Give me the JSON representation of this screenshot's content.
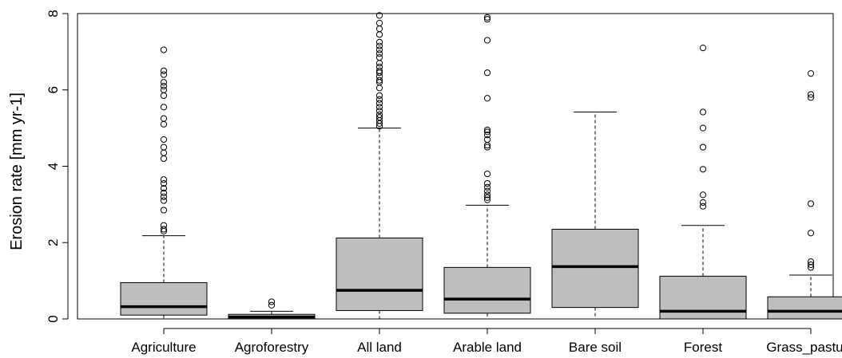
{
  "chart_data": {
    "type": "boxplot",
    "title": "",
    "xlabel": "",
    "ylabel": "Erosion rate [mm yr-1]",
    "ylim": [
      0,
      8
    ],
    "yticks": [
      0,
      2,
      4,
      6,
      8
    ],
    "grid": false,
    "colors": {
      "box_fill": "#bebebe",
      "stroke": "#000000"
    },
    "categories": [
      "Agriculture",
      "Agroforestry",
      "All land",
      "Arable land",
      "Bare soil",
      "Forest",
      "Grass_pasture"
    ],
    "boxes": [
      {
        "label": "Agriculture",
        "min": 0.0,
        "q1": 0.1,
        "median": 0.32,
        "q3": 0.95,
        "max": 2.18,
        "outliers": [
          2.3,
          2.35,
          2.45,
          2.85,
          3.1,
          3.2,
          3.3,
          3.42,
          3.55,
          3.65,
          4.2,
          4.35,
          4.5,
          4.7,
          5.1,
          5.25,
          5.55,
          5.85,
          6.0,
          6.1,
          6.2,
          6.4,
          6.5,
          7.05
        ]
      },
      {
        "label": "Agroforestry",
        "min": 0.0,
        "q1": 0.0,
        "median": 0.05,
        "q3": 0.12,
        "max": 0.2,
        "outliers": [
          0.36,
          0.45
        ]
      },
      {
        "label": "All land",
        "min": 0.0,
        "q1": 0.22,
        "median": 0.75,
        "q3": 2.12,
        "max": 5.0,
        "outliers": [
          5.05,
          5.12,
          5.2,
          5.28,
          5.35,
          5.45,
          5.55,
          5.65,
          5.75,
          5.85,
          6.05,
          6.2,
          6.25,
          6.35,
          6.45,
          6.5,
          6.6,
          6.7,
          6.85,
          6.95,
          7.05,
          7.15,
          7.25,
          7.45,
          7.6,
          7.75,
          7.95
        ]
      },
      {
        "label": "Arable land",
        "min": 0.0,
        "q1": 0.15,
        "median": 0.52,
        "q3": 1.35,
        "max": 2.98,
        "outliers": [
          3.12,
          3.18,
          3.25,
          3.35,
          3.45,
          3.55,
          3.8,
          4.5,
          4.55,
          4.7,
          4.82,
          4.9,
          4.95,
          5.78,
          6.45,
          7.3,
          7.85,
          7.9
        ]
      },
      {
        "label": "Bare soil",
        "min": 0.0,
        "q1": 0.3,
        "median": 1.37,
        "q3": 2.35,
        "max": 5.42,
        "outliers": []
      },
      {
        "label": "Forest",
        "min": 0.0,
        "q1": 0.0,
        "median": 0.2,
        "q3": 1.12,
        "max": 2.45,
        "outliers": [
          2.95,
          3.05,
          3.25,
          3.92,
          4.5,
          5.0,
          5.42,
          7.1
        ]
      },
      {
        "label": "Grass_pasture",
        "min": 0.0,
        "q1": 0.0,
        "median": 0.2,
        "q3": 0.58,
        "max": 1.15,
        "outliers": [
          1.35,
          1.42,
          1.5,
          2.25,
          3.02,
          5.8,
          5.88,
          6.43
        ]
      }
    ]
  }
}
